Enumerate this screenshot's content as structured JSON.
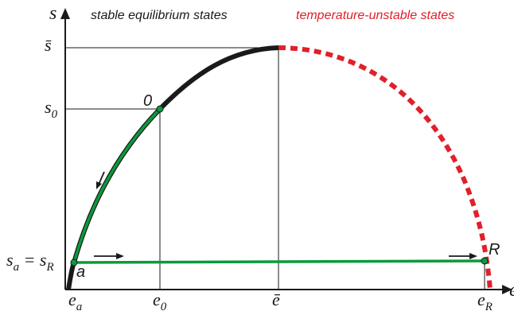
{
  "header": {
    "stable_caption": "stable equilibrium states",
    "unstable_caption": "temperature-unstable states"
  },
  "axes": {
    "y_label": "s",
    "x_label": "e"
  },
  "y_ticks": {
    "s_bar": "s̄",
    "s_zero": "s",
    "s_zero_sub": "0",
    "s_a": "s",
    "s_a_sub": "a",
    "equals": " = s",
    "s_r_sub": "R"
  },
  "x_ticks": {
    "e_a": "e",
    "e_a_sub": "a",
    "e_zero": "e",
    "e_zero_sub": "0",
    "e_bar": "ē",
    "e_r": "e",
    "e_r_sub": "R"
  },
  "points": {
    "zero": "0",
    "a": "a",
    "r": "R"
  },
  "colors": {
    "stable_curve": "#1a1a1a",
    "green_path": "#0a9a3c",
    "unstable_curve": "#e0202a",
    "axis": "#1a1a1a"
  }
}
